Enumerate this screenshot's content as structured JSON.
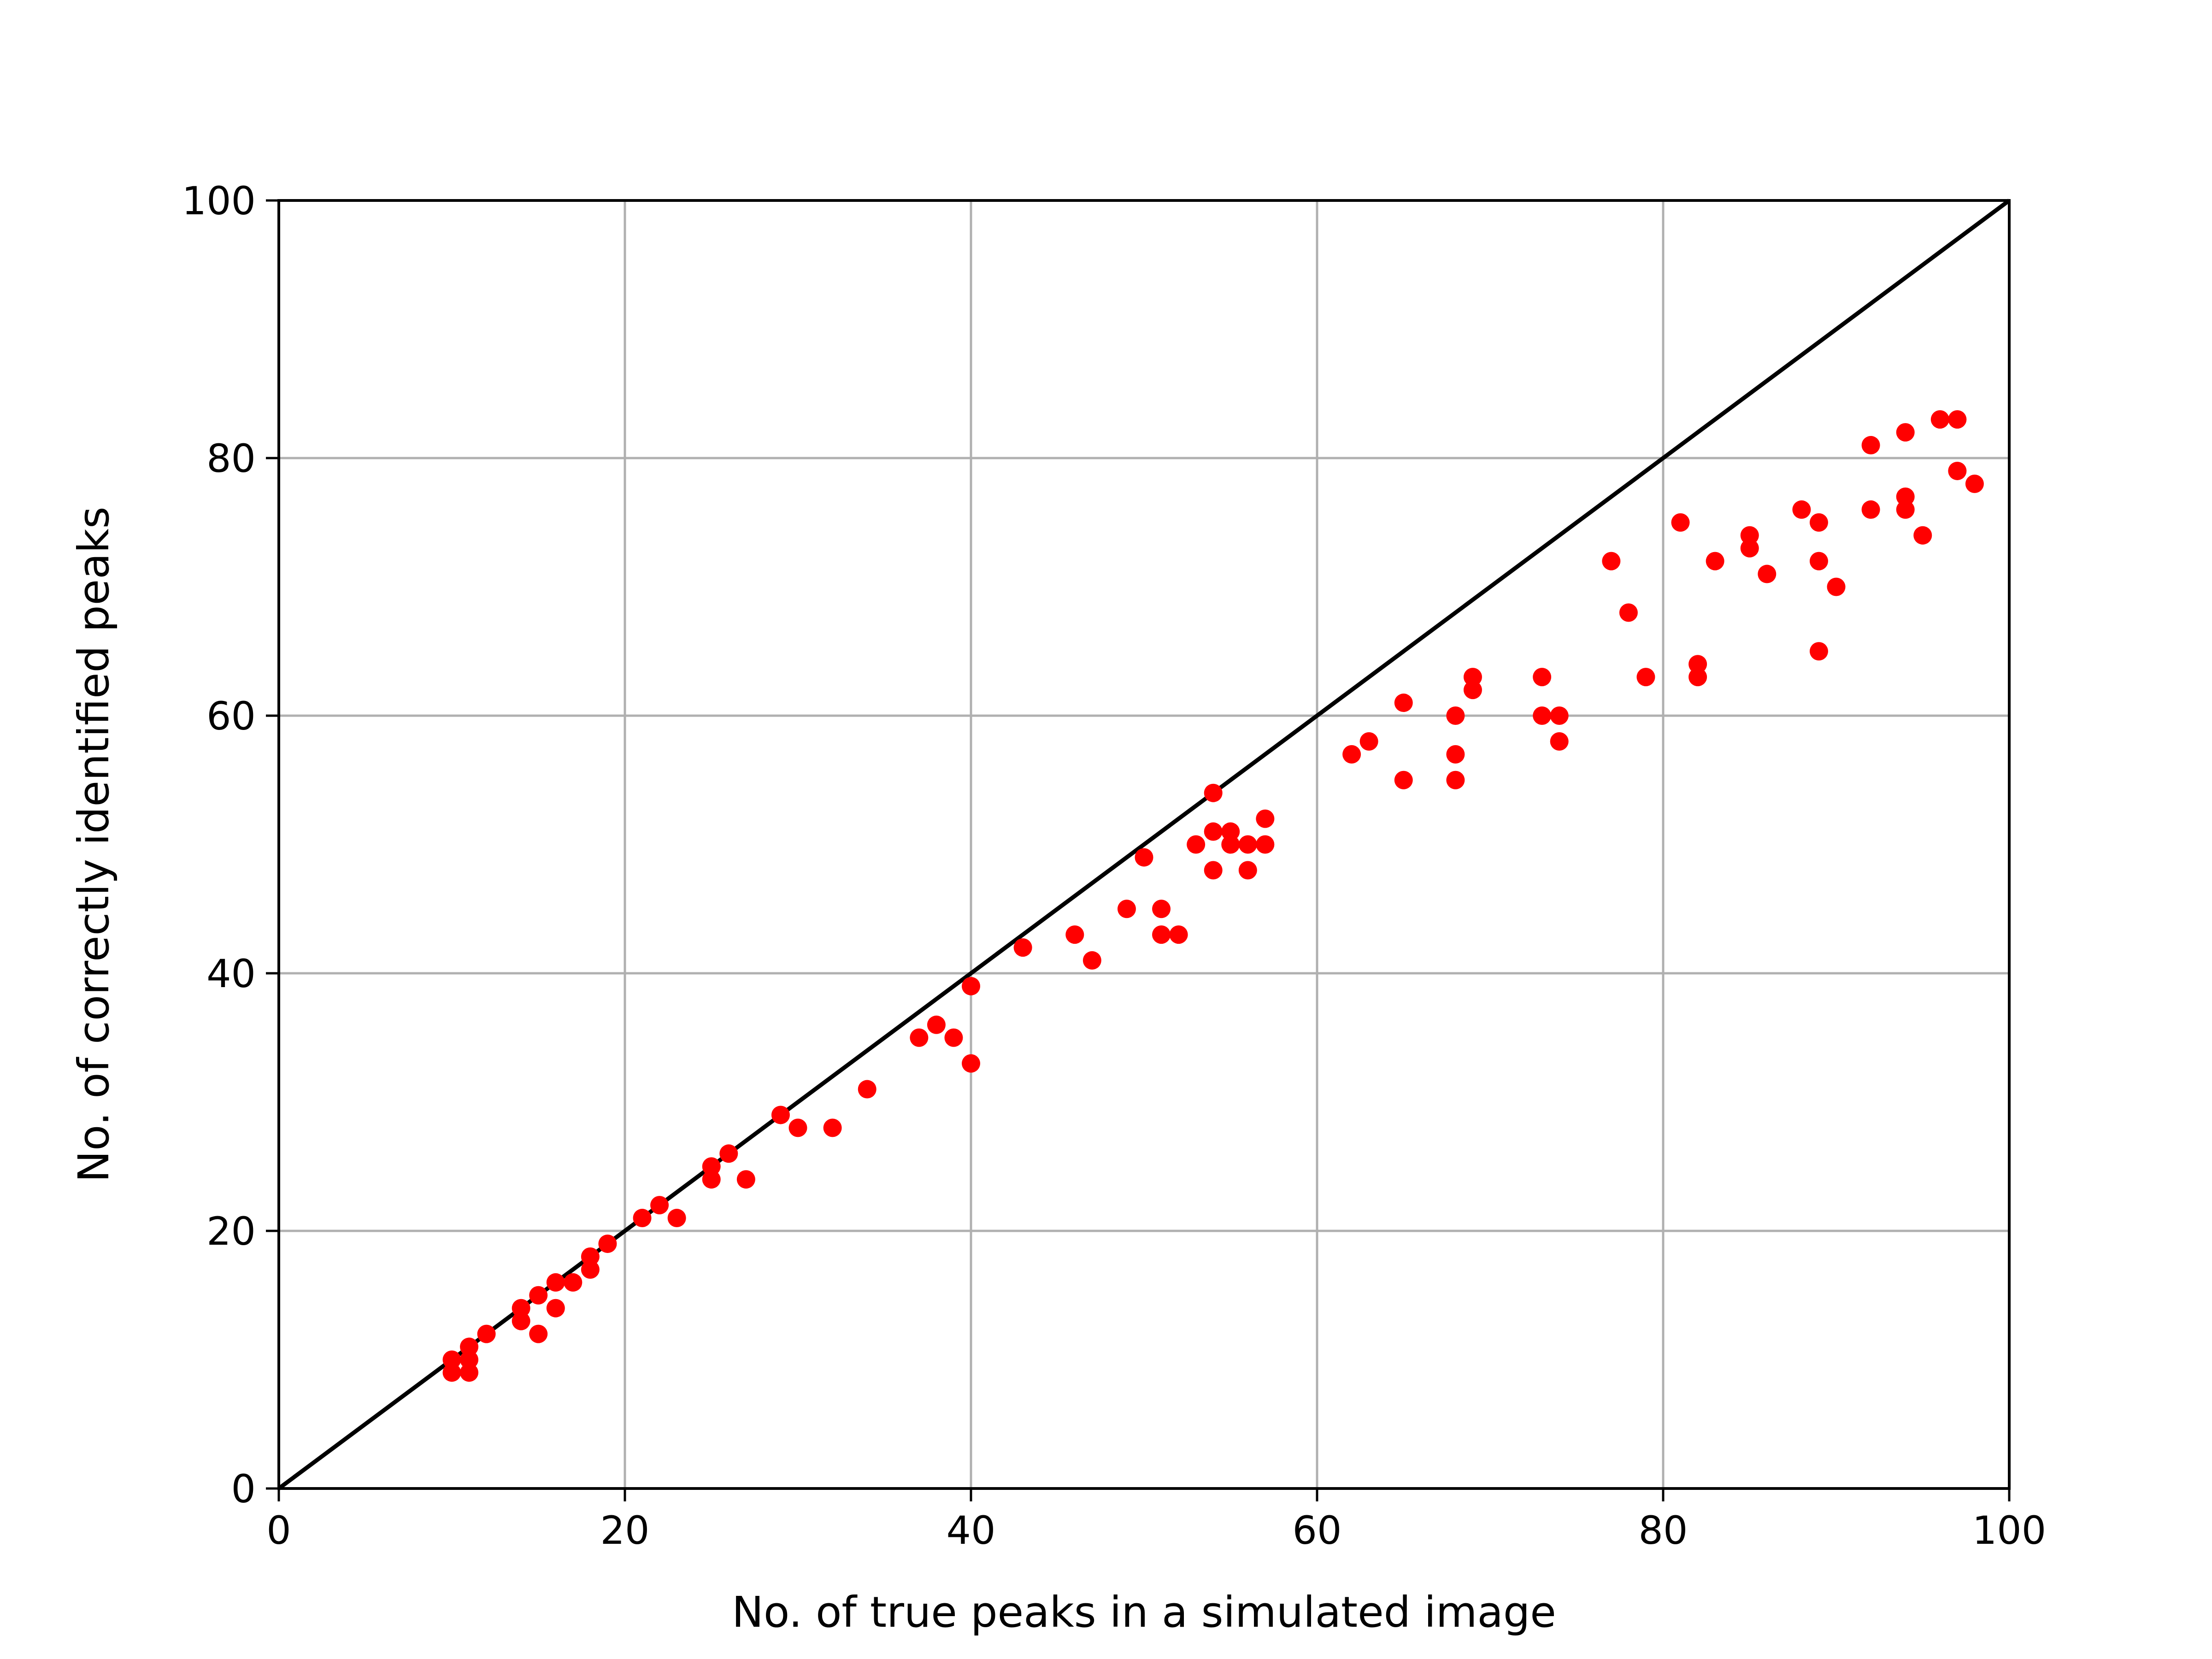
{
  "chart_data": {
    "type": "scatter",
    "title": "",
    "xlabel": "No. of true peaks in a simulated image",
    "ylabel": "No. of correctly identified peaks",
    "xlim": [
      0,
      100
    ],
    "ylim": [
      0,
      100
    ],
    "xticks": [
      0,
      20,
      40,
      60,
      80,
      100
    ],
    "yticks": [
      0,
      20,
      40,
      60,
      80,
      100
    ],
    "grid": true,
    "reference_line": {
      "x": [
        0,
        100
      ],
      "y": [
        0,
        100
      ],
      "color": "#000000"
    },
    "series": [
      {
        "color": "#ff0000",
        "points": [
          [
            10,
            10
          ],
          [
            10,
            9
          ],
          [
            11,
            11
          ],
          [
            11,
            10
          ],
          [
            11,
            9
          ],
          [
            12,
            12
          ],
          [
            14,
            14
          ],
          [
            14,
            13
          ],
          [
            15,
            15
          ],
          [
            15,
            12
          ],
          [
            16,
            16
          ],
          [
            16,
            14
          ],
          [
            17,
            16
          ],
          [
            18,
            18
          ],
          [
            18,
            17
          ],
          [
            19,
            19
          ],
          [
            21,
            21
          ],
          [
            22,
            22
          ],
          [
            23,
            21
          ],
          [
            25,
            25
          ],
          [
            25,
            24
          ],
          [
            26,
            26
          ],
          [
            27,
            24
          ],
          [
            29,
            29
          ],
          [
            30,
            28
          ],
          [
            32,
            28
          ],
          [
            34,
            31
          ],
          [
            37,
            35
          ],
          [
            38,
            36
          ],
          [
            39,
            35
          ],
          [
            40,
            39
          ],
          [
            40,
            33
          ],
          [
            43,
            42
          ],
          [
            46,
            43
          ],
          [
            47,
            41
          ],
          [
            49,
            45
          ],
          [
            50,
            49
          ],
          [
            51,
            45
          ],
          [
            51,
            43
          ],
          [
            52,
            43
          ],
          [
            53,
            50
          ],
          [
            54,
            54
          ],
          [
            54,
            51
          ],
          [
            54,
            48
          ],
          [
            55,
            51
          ],
          [
            55,
            50
          ],
          [
            56,
            50
          ],
          [
            56,
            48
          ],
          [
            57,
            52
          ],
          [
            57,
            50
          ],
          [
            62,
            57
          ],
          [
            63,
            58
          ],
          [
            65,
            61
          ],
          [
            65,
            55
          ],
          [
            68,
            60
          ],
          [
            68,
            57
          ],
          [
            68,
            55
          ],
          [
            69,
            63
          ],
          [
            69,
            62
          ],
          [
            73,
            63
          ],
          [
            73,
            60
          ],
          [
            74,
            60
          ],
          [
            74,
            58
          ],
          [
            77,
            72
          ],
          [
            78,
            68
          ],
          [
            79,
            63
          ],
          [
            81,
            75
          ],
          [
            82,
            64
          ],
          [
            82,
            63
          ],
          [
            83,
            72
          ],
          [
            85,
            74
          ],
          [
            85,
            73
          ],
          [
            86,
            71
          ],
          [
            88,
            76
          ],
          [
            89,
            75
          ],
          [
            89,
            72
          ],
          [
            89,
            65
          ],
          [
            90,
            70
          ],
          [
            92,
            81
          ],
          [
            92,
            76
          ],
          [
            94,
            82
          ],
          [
            94,
            77
          ],
          [
            94,
            76
          ],
          [
            95,
            74
          ],
          [
            96,
            83
          ],
          [
            97,
            83
          ],
          [
            97,
            79
          ],
          [
            98,
            78
          ]
        ]
      }
    ]
  }
}
